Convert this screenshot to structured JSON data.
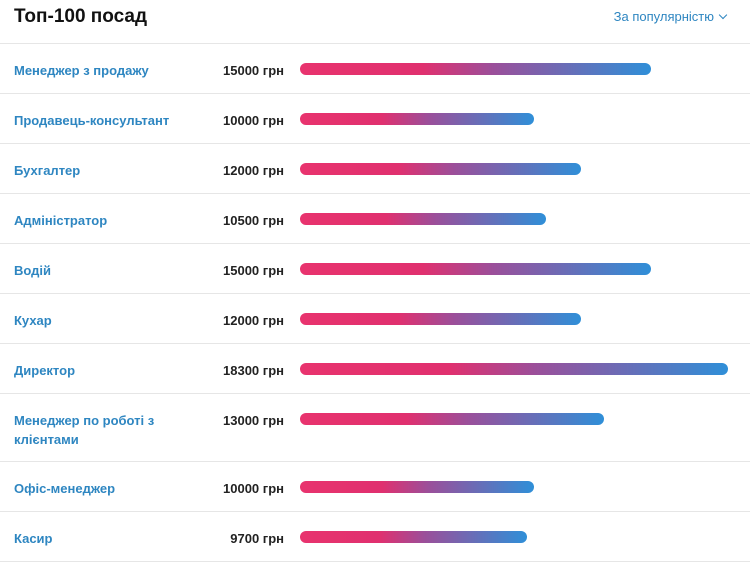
{
  "header": {
    "title": "Топ-100 посад",
    "sort_label": "За популярністю"
  },
  "scale_max": 18300,
  "rows": [
    {
      "name": "Менеджер з продажу",
      "salary_label": "15000 грн",
      "salary": 15000
    },
    {
      "name": "Продавець-консультант",
      "salary_label": "10000 грн",
      "salary": 10000
    },
    {
      "name": "Бухгалтер",
      "salary_label": "12000 грн",
      "salary": 12000
    },
    {
      "name": "Адміністратор",
      "salary_label": "10500 грн",
      "salary": 10500
    },
    {
      "name": "Водій",
      "salary_label": "15000 грн",
      "salary": 15000
    },
    {
      "name": "Кухар",
      "salary_label": "12000 грн",
      "salary": 12000
    },
    {
      "name": "Директор",
      "salary_label": "18300 грн",
      "salary": 18300
    },
    {
      "name": "Менеджер по роботі з клієнтами",
      "salary_label": "13000 грн",
      "salary": 13000
    },
    {
      "name": "Офіс-менеджер",
      "salary_label": "10000 грн",
      "salary": 10000
    },
    {
      "name": "Касир",
      "salary_label": "9700 грн",
      "salary": 9700
    }
  ],
  "colors": {
    "link": "#2e86c1",
    "bar_start": "#e8336e",
    "bar_end": "#2f8fd8"
  }
}
